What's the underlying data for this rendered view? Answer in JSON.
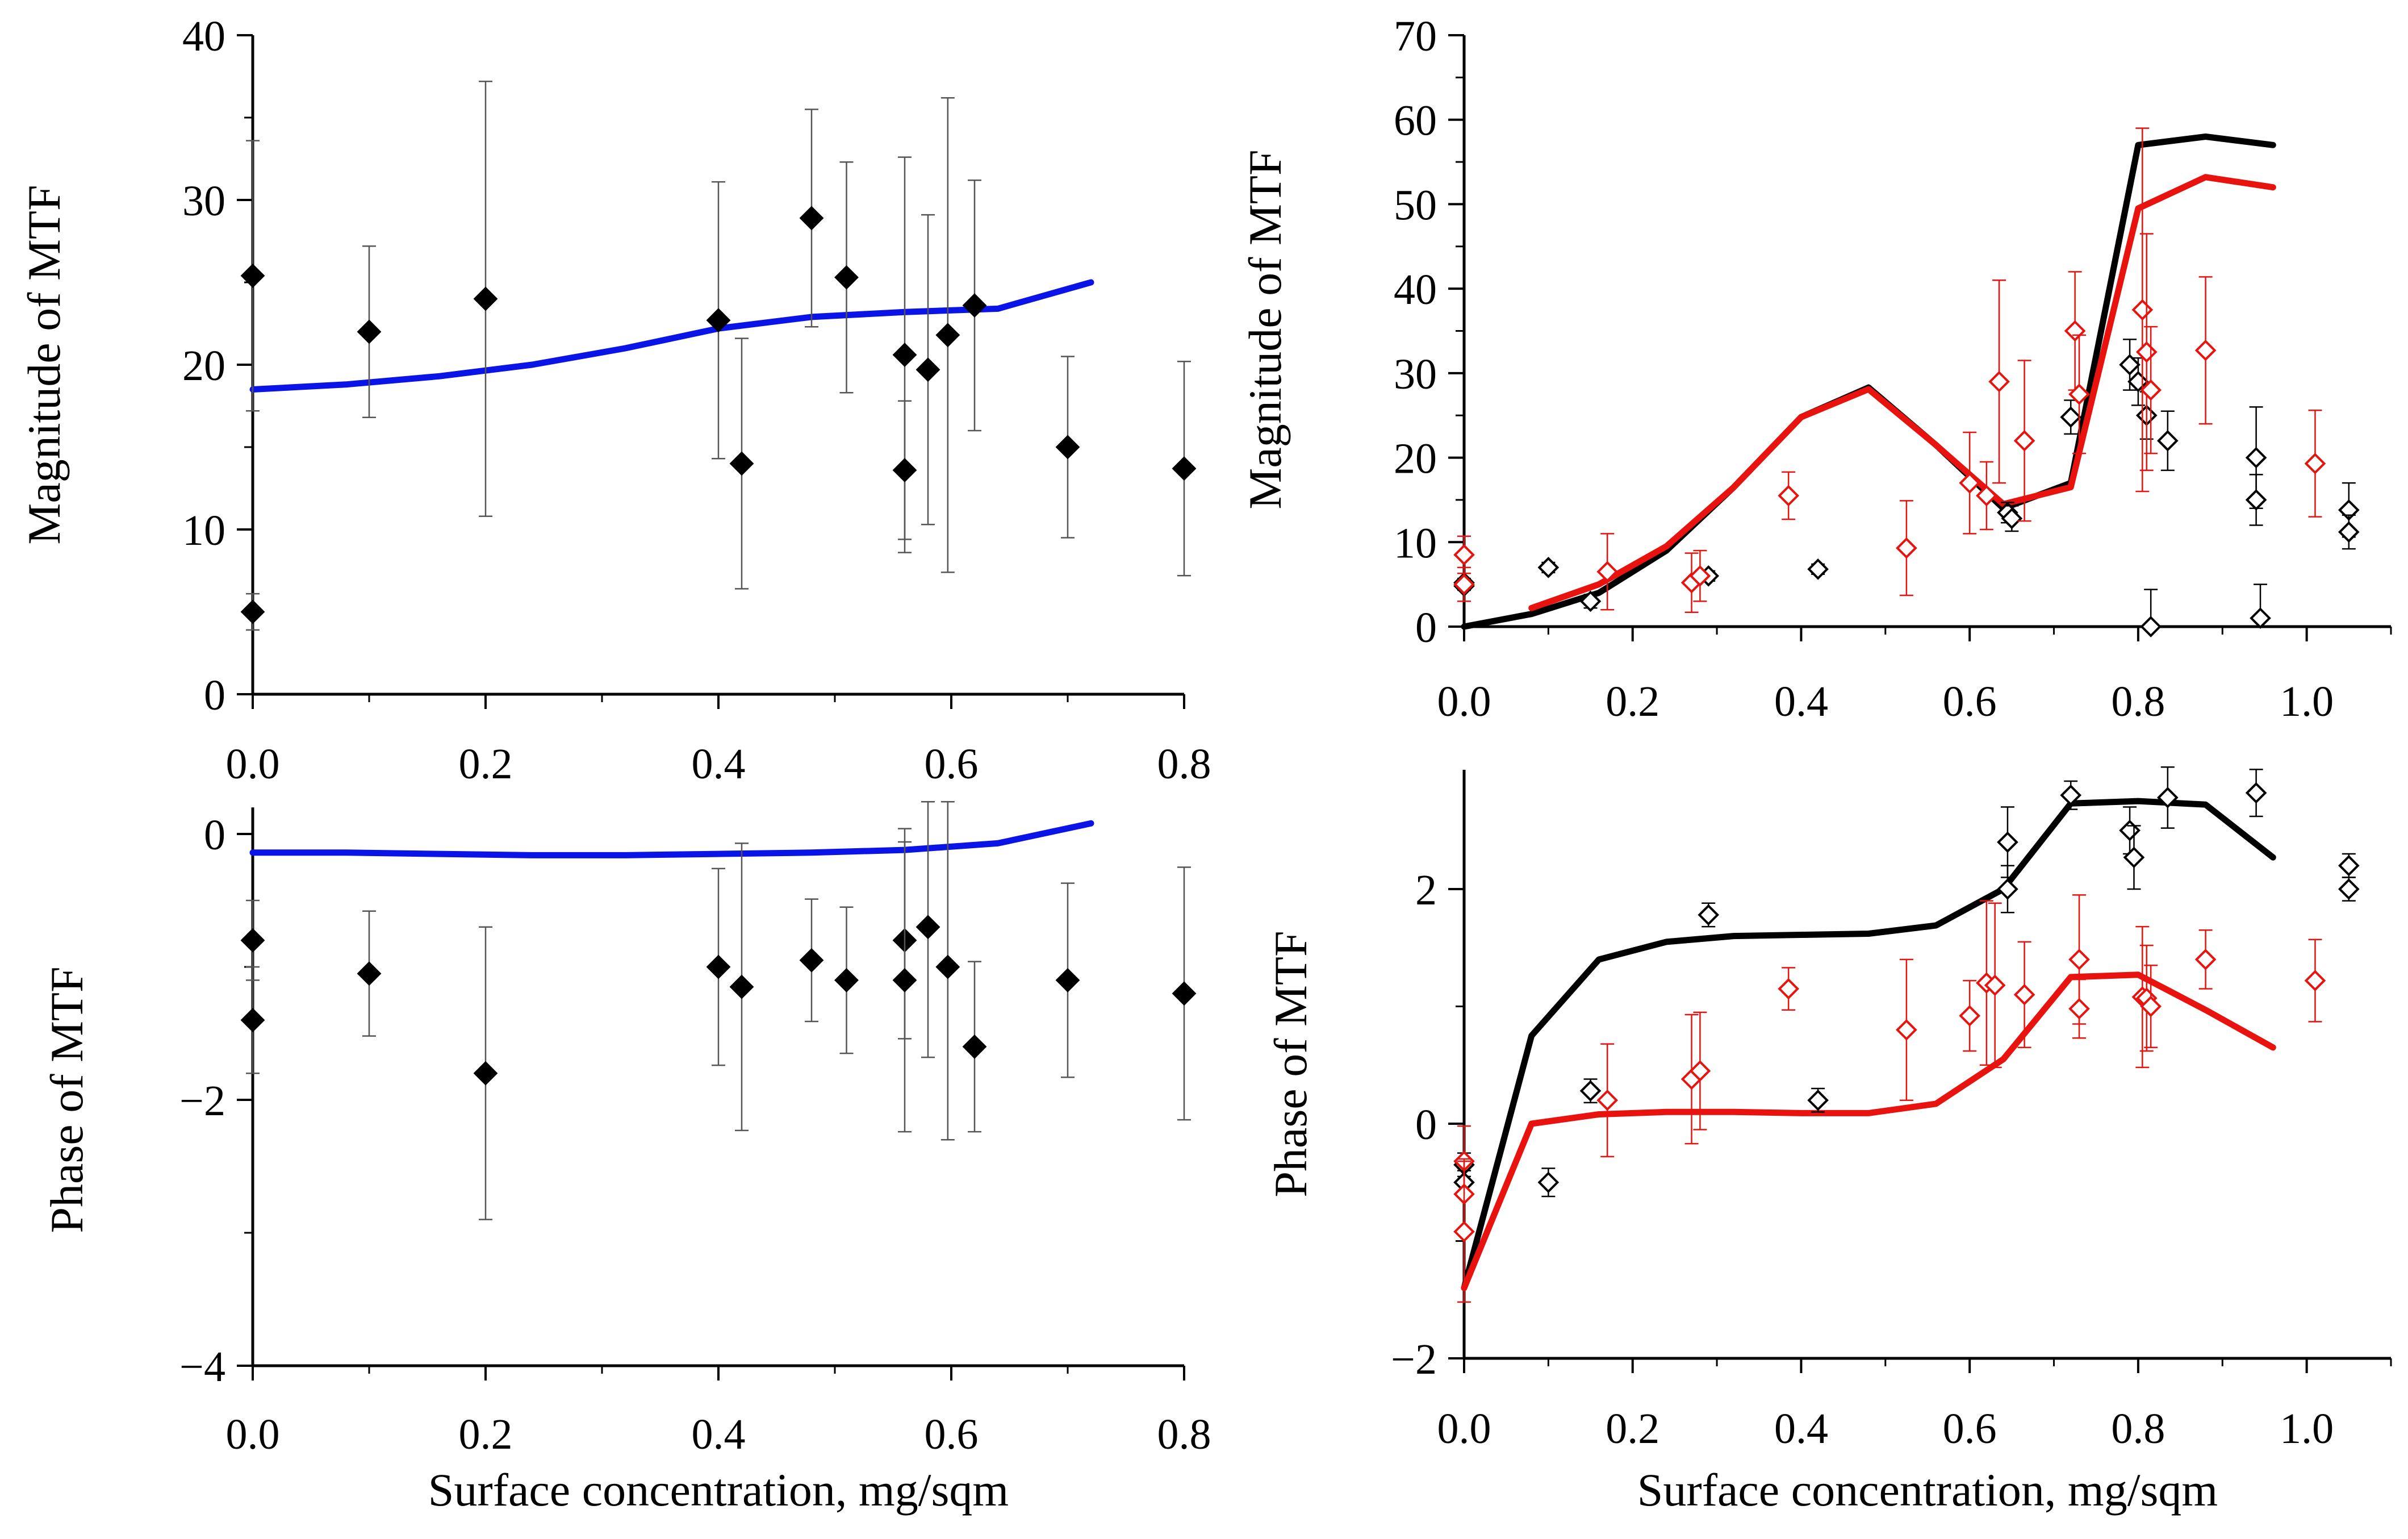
{
  "chart_data": [
    {
      "id": "tl",
      "type": "scatter",
      "ylabel": "Magnitude of MTF",
      "xlim": [
        0,
        0.8
      ],
      "ylim": [
        0,
        40
      ],
      "xticks": [
        0,
        0.2,
        0.4,
        0.6,
        0.8
      ],
      "xtick_labels": [
        "0.0",
        "0.2",
        "0.4",
        "0.6",
        "0.8"
      ],
      "yticks": [
        0,
        10,
        20,
        30,
        40
      ],
      "ytick_labels": [
        "0",
        "10",
        "20",
        "30",
        "40"
      ],
      "series": [
        {
          "name": "model",
          "kind": "line",
          "color": "#0a14e6",
          "x": [
            0,
            0.08,
            0.16,
            0.24,
            0.32,
            0.4,
            0.48,
            0.56,
            0.64,
            0.72
          ],
          "y": [
            18.5,
            18.8,
            19.3,
            20.0,
            21.0,
            22.2,
            22.9,
            23.2,
            23.4,
            25.0
          ]
        },
        {
          "name": "data",
          "kind": "points",
          "marker": "filled-diamond",
          "color": "#000000",
          "x": [
            0,
            0,
            0.1,
            0.2,
            0.4,
            0.42,
            0.48,
            0.51,
            0.56,
            0.56,
            0.58,
            0.597,
            0.62,
            0.7,
            0.8
          ],
          "y": [
            25.4,
            5.0,
            22.0,
            24.0,
            22.7,
            14.0,
            28.9,
            25.3,
            20.6,
            13.6,
            19.7,
            21.8,
            23.6,
            15.0,
            13.7
          ],
          "err": [
            8.2,
            1.1,
            5.2,
            13.2,
            8.4,
            7.6,
            6.6,
            7.0,
            12.0,
            4.2,
            9.4,
            14.4,
            7.6,
            5.5,
            6.5
          ]
        }
      ]
    },
    {
      "id": "bl",
      "type": "scatter",
      "ylabel": "Phase of MTF",
      "xlabel": "Surface concentration, mg/sqm",
      "xlim": [
        0,
        0.8
      ],
      "ylim": [
        -4,
        0.3
      ],
      "xticks": [
        0,
        0.2,
        0.4,
        0.6,
        0.8
      ],
      "xtick_labels": [
        "0.0",
        "0.2",
        "0.4",
        "0.6",
        "0.8"
      ],
      "yticks": [
        0,
        -2,
        -4
      ],
      "ytick_labels": [
        "0",
        "−2",
        "−4"
      ],
      "series": [
        {
          "name": "model",
          "kind": "line",
          "color": "#0a14e6",
          "x": [
            0,
            0.08,
            0.16,
            0.24,
            0.32,
            0.4,
            0.48,
            0.56,
            0.64,
            0.72
          ],
          "y": [
            -0.14,
            -0.14,
            -0.15,
            -0.16,
            -0.16,
            -0.15,
            -0.14,
            -0.12,
            -0.07,
            0.08
          ]
        },
        {
          "name": "data",
          "kind": "points",
          "marker": "filled-diamond",
          "color": "#000000",
          "x": [
            0,
            0,
            0.1,
            0.2,
            0.4,
            0.42,
            0.48,
            0.51,
            0.56,
            0.56,
            0.58,
            0.597,
            0.62,
            0.7,
            0.8
          ],
          "y": [
            -0.8,
            -1.4,
            -1.05,
            -1.8,
            -1.0,
            -1.15,
            -0.95,
            -1.1,
            -0.8,
            -1.1,
            -0.7,
            -1.0,
            -1.6,
            -1.1,
            -1.2
          ],
          "err": [
            0.3,
            0.4,
            0.47,
            1.1,
            0.74,
            1.08,
            0.46,
            0.55,
            0.74,
            1.14,
            0.98,
            1.3,
            0.64,
            0.73,
            0.95
          ]
        }
      ]
    },
    {
      "id": "tr",
      "type": "scatter",
      "ylabel": "Magnitude of MTF",
      "xlim": [
        0,
        1.1
      ],
      "ylim": [
        0,
        70
      ],
      "xticks": [
        0,
        0.2,
        0.4,
        0.6,
        0.8,
        1.0
      ],
      "xtick_labels": [
        "0.0",
        "0.2",
        "0.4",
        "0.6",
        "0.8",
        "1.0"
      ],
      "yticks": [
        0,
        10,
        20,
        30,
        40,
        50,
        60,
        70
      ],
      "ytick_labels": [
        "0",
        "10",
        "20",
        "30",
        "40",
        "50",
        "60",
        "70"
      ],
      "series": [
        {
          "name": "model-black",
          "kind": "line",
          "color": "#000000",
          "x": [
            0,
            0.08,
            0.16,
            0.24,
            0.32,
            0.4,
            0.48,
            0.56,
            0.64,
            0.72,
            0.8,
            0.88,
            0.96
          ],
          "y": [
            0,
            1.5,
            4.0,
            9.0,
            16.5,
            24.8,
            28.3,
            21.5,
            14.0,
            17.0,
            57.0,
            58.0,
            57.0
          ]
        },
        {
          "name": "model-red",
          "kind": "line",
          "color": "#e8130f",
          "x": [
            0.08,
            0.16,
            0.24,
            0.32,
            0.4,
            0.48,
            0.56,
            0.64,
            0.72,
            0.8,
            0.88,
            0.96
          ],
          "y": [
            2.2,
            5.0,
            9.5,
            16.5,
            24.8,
            28.1,
            21.5,
            14.5,
            16.5,
            49.5,
            53.2,
            52.0
          ]
        },
        {
          "name": "data-black",
          "kind": "points",
          "marker": "open-diamond",
          "color": "#000000",
          "x": [
            0,
            0,
            0.1,
            0.15,
            0.29,
            0.42,
            0.645,
            0.65,
            0.72,
            0.79,
            0.8,
            0.81,
            0.815,
            0.835,
            0.94,
            0.94,
            0.945,
            1.05,
            1.05
          ],
          "y": [
            4.8,
            5.2,
            7.0,
            3.0,
            6.0,
            6.8,
            13.5,
            12.8,
            24.8,
            31.0,
            29.0,
            25.0,
            0,
            22.0,
            20.0,
            15.0,
            1.0,
            13.8,
            11.2
          ],
          "err": [
            0.5,
            0.5,
            0.6,
            0.8,
            0.6,
            0.6,
            1.2,
            1.5,
            2.0,
            3.0,
            2.8,
            2.8,
            4.4,
            3.5,
            6.0,
            3.0,
            4.0,
            3.2,
            2.0
          ]
        },
        {
          "name": "data-red",
          "kind": "points",
          "marker": "open-diamond",
          "color": "#e8130f",
          "x": [
            0,
            0,
            0.17,
            0.27,
            0.28,
            0.385,
            0.525,
            0.6,
            0.62,
            0.635,
            0.665,
            0.725,
            0.73,
            0.805,
            0.81,
            0.815,
            0.88,
            1.01
          ],
          "y": [
            8.5,
            5.0,
            6.5,
            5.2,
            6.0,
            15.5,
            9.3,
            17.0,
            15.5,
            29.0,
            22.0,
            35.0,
            27.5,
            37.5,
            32.5,
            28.0,
            32.7,
            19.3
          ],
          "err": [
            2.2,
            2.0,
            4.5,
            3.5,
            3.0,
            2.8,
            5.6,
            6.0,
            4.0,
            12.0,
            9.5,
            7.0,
            7.0,
            21.5,
            14.0,
            7.5,
            8.7,
            6.3
          ]
        }
      ]
    },
    {
      "id": "br",
      "type": "scatter",
      "ylabel": "Phase of MTF",
      "xlabel": "Surface concentration, mg/sqm",
      "xlim": [
        0,
        1.1
      ],
      "ylim": [
        -2,
        3
      ],
      "xticks": [
        0,
        0.2,
        0.4,
        0.6,
        0.8,
        1.0
      ],
      "xtick_labels": [
        "0.0",
        "0.2",
        "0.4",
        "0.6",
        "0.8",
        "1.0"
      ],
      "yticks": [
        -2,
        0,
        2
      ],
      "ytick_labels": [
        "−2",
        "0",
        "2"
      ],
      "series": [
        {
          "name": "model-black",
          "kind": "line",
          "color": "#000000",
          "x": [
            0,
            0.08,
            0.16,
            0.24,
            0.32,
            0.4,
            0.48,
            0.56,
            0.64,
            0.72,
            0.8,
            0.88,
            0.96
          ],
          "y": [
            -1.4,
            0.75,
            1.4,
            1.55,
            1.6,
            1.61,
            1.62,
            1.69,
            2.0,
            2.73,
            2.75,
            2.72,
            2.27
          ]
        },
        {
          "name": "model-red",
          "kind": "line",
          "color": "#e8130f",
          "x": [
            0,
            0.04,
            0.08,
            0.16,
            0.24,
            0.32,
            0.4,
            0.48,
            0.56,
            0.64,
            0.72,
            0.8,
            0.88,
            0.96
          ],
          "y": [
            -1.4,
            -0.7,
            0.0,
            0.08,
            0.1,
            0.1,
            0.09,
            0.09,
            0.17,
            0.55,
            1.25,
            1.27,
            0.97,
            0.65
          ]
        },
        {
          "name": "data-black",
          "kind": "points",
          "marker": "open-diamond",
          "color": "#000000",
          "x": [
            0,
            0,
            0.1,
            0.15,
            0.29,
            0.42,
            0.645,
            0.645,
            0.72,
            0.79,
            0.795,
            0.835,
            0.94,
            1.05,
            1.05
          ],
          "y": [
            -0.35,
            -0.5,
            -0.5,
            0.28,
            1.78,
            0.2,
            2.4,
            2.0,
            2.8,
            2.5,
            2.27,
            2.78,
            2.82,
            2.2,
            2.0
          ],
          "err": [
            0.1,
            0.1,
            0.12,
            0.1,
            0.1,
            0.1,
            0.3,
            0.2,
            0.12,
            0.2,
            0.27,
            0.26,
            0.2,
            0.1,
            0.1
          ]
        },
        {
          "name": "data-red",
          "kind": "points",
          "marker": "open-diamond",
          "color": "#e8130f",
          "x": [
            0,
            0,
            0,
            0.17,
            0.27,
            0.28,
            0.385,
            0.525,
            0.6,
            0.62,
            0.63,
            0.665,
            0.73,
            0.73,
            0.805,
            0.81,
            0.815,
            0.88,
            1.01
          ],
          "y": [
            -0.32,
            -0.6,
            -0.92,
            0.2,
            0.38,
            0.45,
            1.15,
            0.8,
            0.92,
            1.2,
            1.18,
            1.1,
            1.4,
            0.98,
            1.08,
            1.07,
            1.0,
            1.4,
            1.22
          ],
          "err": [
            0.3,
            0.3,
            0.6,
            0.48,
            0.55,
            0.5,
            0.18,
            0.6,
            0.3,
            0.7,
            0.7,
            0.45,
            0.55,
            0.25,
            0.6,
            0.45,
            0.35,
            0.25,
            0.35
          ]
        }
      ]
    }
  ]
}
